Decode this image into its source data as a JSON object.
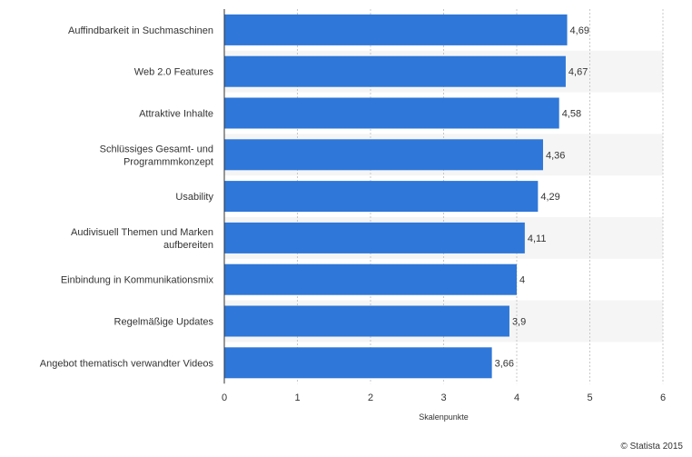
{
  "chart_data": {
    "type": "bar",
    "orientation": "horizontal",
    "categories": [
      "Auffindbarkeit in Suchmaschinen",
      "Web 2.0 Features",
      "Attraktive Inhalte",
      "Schlüssiges Gesamt- und Programmmkonzept",
      "Usability",
      "Audivisuell Themen und Marken aufbereiten",
      "Einbindung in Kommunikationsmix",
      "Regelmäßige Updates",
      "Angebot thematisch verwandter Videos"
    ],
    "category_lines": [
      [
        "Auffindbarkeit in Suchmaschinen"
      ],
      [
        "Web 2.0 Features"
      ],
      [
        "Attraktive Inhalte"
      ],
      [
        "Schlüssiges Gesamt- und",
        "Programmmkonzept"
      ],
      [
        "Usability"
      ],
      [
        "Audivisuell Themen und Marken",
        "aufbereiten"
      ],
      [
        "Einbindung in Kommunikationsmix"
      ],
      [
        "Regelmäßige Updates"
      ],
      [
        "Angebot thematisch verwandter Videos"
      ]
    ],
    "values": [
      4.69,
      4.67,
      4.58,
      4.36,
      4.29,
      4.11,
      4,
      3.9,
      3.66
    ],
    "value_labels": [
      "4,69",
      "4,67",
      "4,58",
      "4,36",
      "4,29",
      "4,11",
      "4",
      "3,9",
      "3,66"
    ],
    "xlabel": "Skalenpunkte",
    "xlim": [
      0,
      6
    ],
    "xticks": [
      0,
      1,
      2,
      3,
      4,
      5,
      6
    ],
    "grid": true,
    "bar_color": "#2f77d8",
    "band_color": "#f5f5f5"
  },
  "footer": {
    "credit": "© Statista 2015"
  }
}
